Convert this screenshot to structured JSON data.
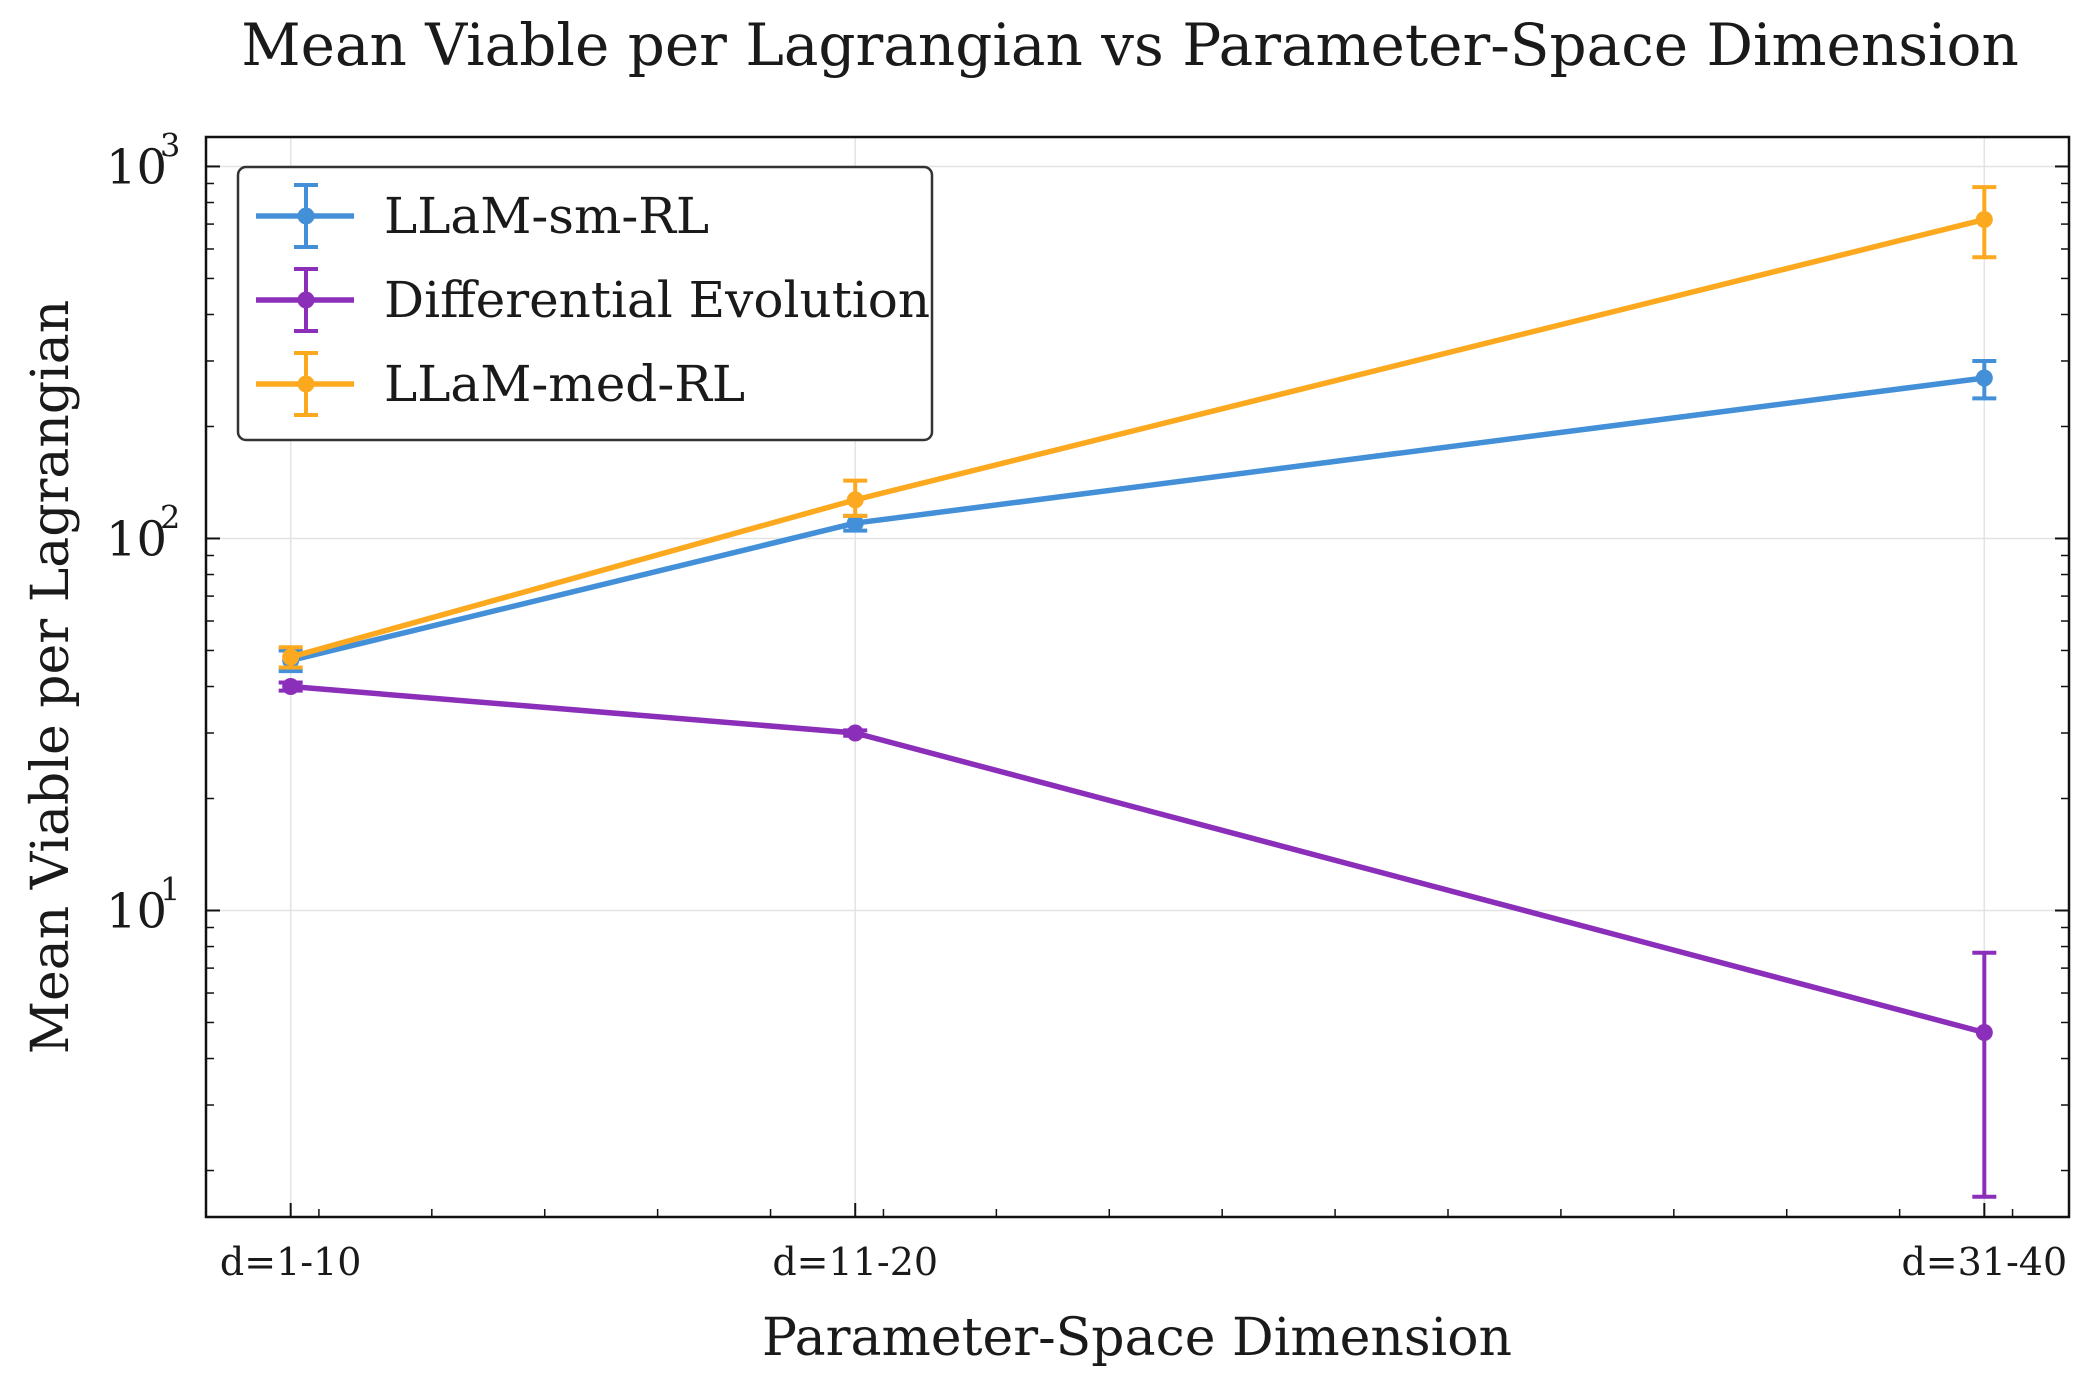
{
  "chart_data": {
    "type": "line",
    "title": "Mean Viable per Lagrangian vs Parameter-Space Dimension",
    "xlabel": "Parameter-Space Dimension",
    "ylabel": "Mean Viable per Lagrangian",
    "y_scale": "log",
    "ylim": [
      1.5,
      1200
    ],
    "x": [
      5.5,
      15.5,
      35.5
    ],
    "xlim": [
      4,
      37
    ],
    "categories": [
      "d=1-10",
      "d=11-20",
      "d=31-40"
    ],
    "y_ticks": [
      {
        "base": "10",
        "exp": "1",
        "value": 10
      },
      {
        "base": "10",
        "exp": "2",
        "value": 100
      },
      {
        "base": "10",
        "exp": "3",
        "value": 1000
      }
    ],
    "grid": true,
    "legend_position": "top-left",
    "series": [
      {
        "name": "LLaM-sm-RL",
        "color": "#4390d8",
        "values": [
          47,
          110,
          270
        ],
        "err_low": [
          44,
          105,
          238
        ],
        "err_high": [
          50,
          115,
          300
        ]
      },
      {
        "name": "Differential Evolution",
        "color": "#8b2eb9",
        "values": [
          40,
          30,
          4.7
        ],
        "err_low": [
          39,
          29.5,
          1.7
        ],
        "err_high": [
          41,
          30.5,
          7.7
        ]
      },
      {
        "name": "LLaM-med-RL",
        "color": "#fca91f",
        "values": [
          48,
          127,
          720
        ],
        "err_low": [
          45,
          115,
          570
        ],
        "err_high": [
          51,
          143,
          880
        ]
      }
    ]
  }
}
